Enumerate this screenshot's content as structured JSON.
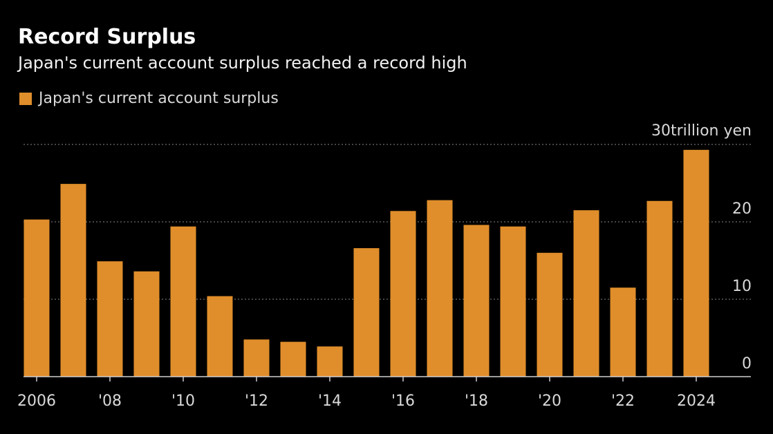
{
  "chart_data": {
    "type": "bar",
    "title": "Record Surplus",
    "subtitle": "Japan's current account surplus reached a record high",
    "unit_label": "trillion yen",
    "series": [
      {
        "name": "Japan's current account surplus",
        "color": "#e08e2b",
        "values": [
          20.3,
          24.9,
          14.9,
          13.6,
          19.4,
          10.4,
          4.8,
          4.5,
          3.9,
          16.6,
          21.4,
          22.8,
          19.6,
          19.4,
          16.0,
          21.5,
          11.5,
          22.7,
          29.3
        ]
      }
    ],
    "categories": [
      "2006",
      "2007",
      "2008",
      "2009",
      "2010",
      "2011",
      "2012",
      "2013",
      "2014",
      "2015",
      "2016",
      "2017",
      "2018",
      "2019",
      "2020",
      "2021",
      "2022",
      "2023",
      "2024"
    ],
    "x_tick_labels": [
      {
        "category": "2006",
        "label": "2006"
      },
      {
        "category": "2008",
        "label": "'08"
      },
      {
        "category": "2010",
        "label": "'10"
      },
      {
        "category": "2012",
        "label": "'12"
      },
      {
        "category": "2014",
        "label": "'14"
      },
      {
        "category": "2016",
        "label": "'16"
      },
      {
        "category": "2018",
        "label": "'18"
      },
      {
        "category": "2020",
        "label": "'20"
      },
      {
        "category": "2022",
        "label": "'22"
      },
      {
        "category": "2024",
        "label": "2024"
      }
    ],
    "y_ticks": [
      {
        "value": 0,
        "label": "0"
      },
      {
        "value": 10,
        "label": "10"
      },
      {
        "value": 20,
        "label": "20"
      },
      {
        "value": 30,
        "label": "30"
      }
    ],
    "ylim": [
      0,
      30
    ],
    "grid": true,
    "legend_position": "top-left"
  }
}
